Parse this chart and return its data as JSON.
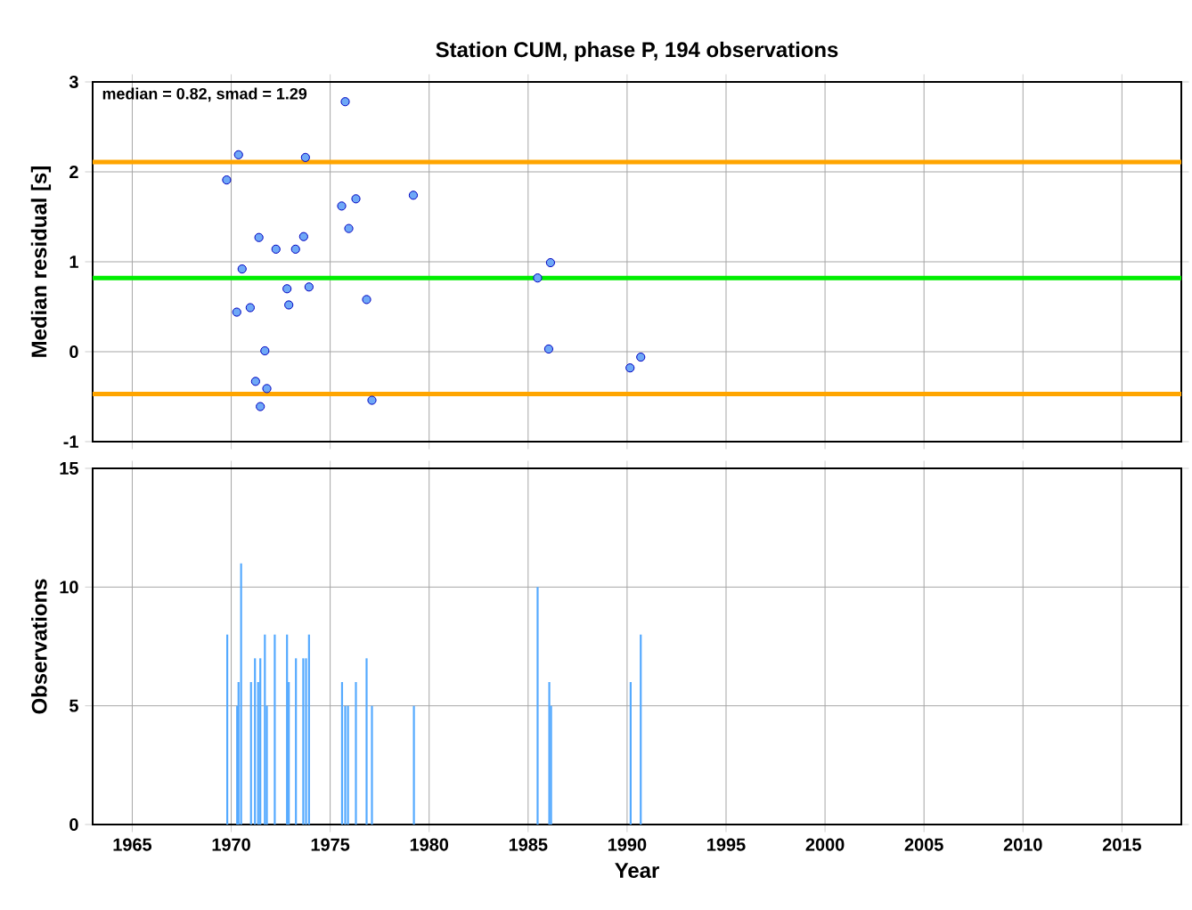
{
  "chart_data": [
    {
      "type": "scatter",
      "title": "Station CUM, phase P, 194 observations",
      "ylabel": "Median residual [s]",
      "annotations": [
        "median = 0.82, smad = 1.29"
      ],
      "x": [
        1975.76,
        1970.37,
        1973.75,
        1969.77,
        1975.58,
        1976.3,
        1979.2,
        1971.4,
        1972.26,
        1973.25,
        1973.66,
        1975.94,
        1970.55,
        1972.82,
        1973.93,
        1972.91,
        1976.84,
        1970.28,
        1970.96,
        1971.7,
        1971.23,
        1971.8,
        1971.47,
        1977.11,
        1986.13,
        1985.48,
        1986.04,
        1990.15,
        1990.69
      ],
      "values": [
        2.78,
        2.19,
        2.16,
        1.91,
        1.62,
        1.7,
        1.74,
        1.27,
        1.14,
        1.14,
        1.28,
        1.37,
        0.92,
        0.7,
        0.72,
        0.52,
        0.58,
        0.44,
        0.49,
        0.01,
        -0.33,
        -0.41,
        -0.61,
        -0.54,
        0.99,
        0.82,
        0.03,
        -0.18,
        -0.06
      ],
      "color": "#6ea8f7",
      "marker": "circle",
      "ref_lines": [
        {
          "axis": "y",
          "value": 0.82,
          "color": "#00ee00"
        },
        {
          "axis": "y",
          "value": 2.11,
          "color": "#ffa500"
        },
        {
          "axis": "y",
          "value": -0.47,
          "color": "#ffa500"
        }
      ],
      "xlim": [
        1963,
        2018
      ],
      "ylim": [
        -1,
        3
      ],
      "xticks": [
        1965,
        1970,
        1975,
        1980,
        1985,
        1990,
        1995,
        2000,
        2005,
        2010,
        2015
      ],
      "yticks": [
        -1,
        0,
        1,
        2,
        3
      ],
      "tick_labels": "y",
      "grid": true
    },
    {
      "type": "bar",
      "xlabel": "Year",
      "ylabel": "Observations",
      "x": [
        1969.8,
        1970.3,
        1970.37,
        1970.5,
        1971.0,
        1971.2,
        1971.36,
        1971.47,
        1971.7,
        1971.8,
        1972.2,
        1972.82,
        1972.91,
        1973.27,
        1973.64,
        1973.78,
        1973.93,
        1975.6,
        1975.76,
        1975.9,
        1976.3,
        1976.84,
        1977.11,
        1979.23,
        1985.48,
        1986.07,
        1986.16,
        1990.18,
        1990.69
      ],
      "values": [
        8,
        5,
        6,
        11,
        6,
        7,
        6,
        7,
        8,
        5,
        8,
        8,
        6,
        7,
        7,
        7,
        8,
        6,
        5,
        5,
        6,
        7,
        5,
        5,
        10,
        6,
        5,
        6,
        8
      ],
      "color": "#55aaff",
      "xlim": [
        1963,
        2018
      ],
      "ylim": [
        0,
        15
      ],
      "xticks": [
        1965,
        1970,
        1975,
        1980,
        1985,
        1990,
        1995,
        2000,
        2005,
        2010,
        2015
      ],
      "yticks": [
        0,
        5,
        10,
        15
      ],
      "grid": true
    }
  ]
}
